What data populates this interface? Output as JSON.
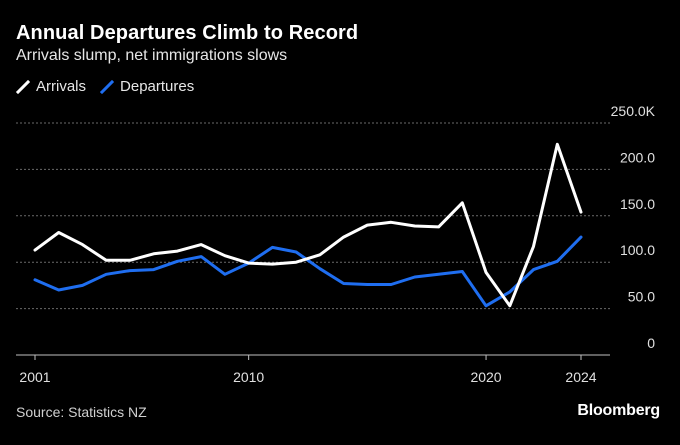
{
  "title": "Annual Departures Climb to Record",
  "subtitle": "Arrivals slump, net immigrations slows",
  "source": "Source: Statistics NZ",
  "brand": "Bloomberg",
  "colors": {
    "background": "#000000",
    "arrivals": "#ffffff",
    "departures": "#1f6ef0",
    "grid": "#666666"
  },
  "chart_data": {
    "type": "line",
    "title": "Annual Departures Climb to Record",
    "subtitle": "Arrivals slump, net immigrations slows",
    "xlabel": "",
    "ylabel": "",
    "x": [
      2001,
      2002,
      2003,
      2004,
      2005,
      2006,
      2007,
      2008,
      2009,
      2010,
      2011,
      2012,
      2013,
      2014,
      2015,
      2016,
      2017,
      2018,
      2019,
      2020,
      2021,
      2022,
      2023,
      2024
    ],
    "xlim": [
      2001,
      2024
    ],
    "ylim": [
      0,
      250
    ],
    "y_ticks": [
      0,
      50,
      100,
      150,
      200,
      250
    ],
    "y_tick_labels": [
      "0",
      "50.0",
      "100.0",
      "150.0",
      "200.0",
      "250.0K"
    ],
    "x_tick_values": [
      2001,
      2010,
      2020,
      2024
    ],
    "x_tick_labels": [
      "2001",
      "2010",
      "2020",
      "2024"
    ],
    "grid": true,
    "legend": "top-left",
    "series": [
      {
        "name": "Arrivals",
        "color": "#ffffff",
        "values": [
          113,
          132,
          119,
          102,
          102,
          109,
          112,
          119,
          107,
          99,
          98,
          100,
          108,
          127,
          140,
          143,
          139,
          138,
          164,
          89,
          53,
          117,
          227,
          154
        ]
      },
      {
        "name": "Departures",
        "color": "#1f6ef0",
        "values": [
          81,
          70,
          75,
          87,
          91,
          92,
          101,
          106,
          87,
          99,
          116,
          111,
          93,
          77,
          76,
          76,
          84,
          87,
          90,
          53,
          68,
          92,
          101,
          127
        ]
      }
    ]
  }
}
